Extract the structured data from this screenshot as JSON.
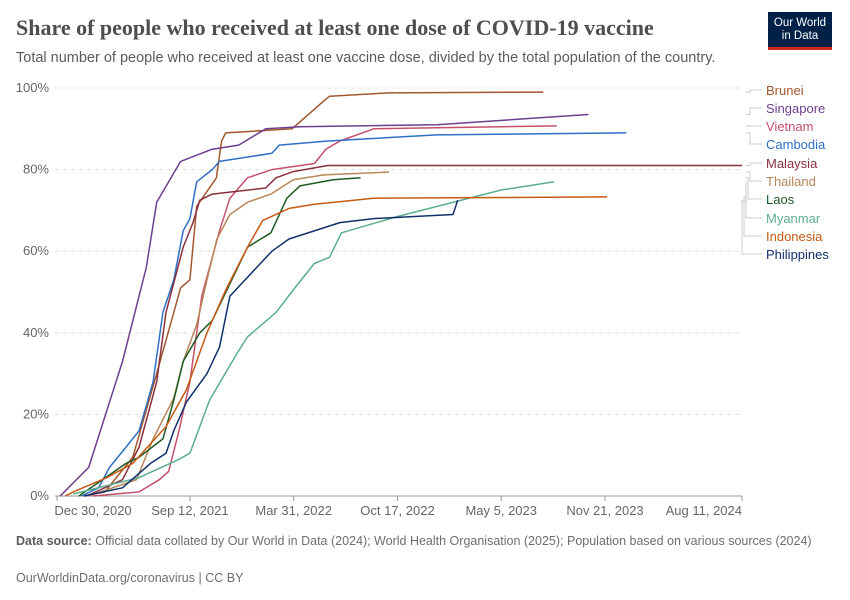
{
  "header": {
    "title": "Share of people who received at least one dose of COVID-19 vaccine",
    "subtitle": "Total number of people who received at least one vaccine dose, divided by the total population of the country.",
    "logo": "Our World in Data"
  },
  "footer": {
    "source_label": "Data source:",
    "source_text": "Official data collated by Our World in Data (2024); World Health Organisation (2025); Population based on various sources (2024)",
    "link": "OurWorldinData.org/coronavirus | CC BY"
  },
  "chart_data": {
    "type": "line",
    "title": "Share of people who received at least one dose of COVID-19 vaccine",
    "xlabel": "",
    "ylabel": "",
    "xlim": [
      "2020-12-26",
      "2024-08-11"
    ],
    "ylim": [
      0,
      100
    ],
    "grid": true,
    "legend": "right (labels at line ends)",
    "y_ticks": [
      "0%",
      "20%",
      "40%",
      "60%",
      "80%",
      "100%"
    ],
    "x_ticks": [
      {
        "date": "2020-12-30",
        "label": "Dec 30, 2020"
      },
      {
        "date": "2021-09-12",
        "label": "Sep 12, 2021"
      },
      {
        "date": "2022-03-31",
        "label": "Mar 31, 2022"
      },
      {
        "date": "2022-10-17",
        "label": "Oct 17, 2022"
      },
      {
        "date": "2023-05-05",
        "label": "May 5, 2023"
      },
      {
        "date": "2023-11-21",
        "label": "Nov 21, 2023"
      },
      {
        "date": "2024-08-11",
        "label": "Aug 11, 2024"
      }
    ],
    "series": [
      {
        "name": "Brunei",
        "color": "#a0582d",
        "points": [
          [
            "2021-02-20",
            0
          ],
          [
            "2021-04-01",
            1
          ],
          [
            "2021-05-25",
            9.5
          ],
          [
            "2021-07-10",
            30
          ],
          [
            "2021-08-25",
            51
          ],
          [
            "2021-09-12",
            53
          ],
          [
            "2021-09-25",
            71
          ],
          [
            "2021-11-02",
            78
          ],
          [
            "2021-11-12",
            87
          ],
          [
            "2021-11-20",
            89
          ],
          [
            "2022-03-28",
            90
          ],
          [
            "2022-05-25",
            96.5
          ],
          [
            "2022-06-08",
            98
          ],
          [
            "2022-10-01",
            98.8
          ],
          [
            "2023-07-25",
            99
          ]
        ]
      },
      {
        "name": "Singapore",
        "color": "#6d3e91",
        "points": [
          [
            "2021-01-05",
            0
          ],
          [
            "2021-03-01",
            7
          ],
          [
            "2021-05-05",
            33
          ],
          [
            "2021-06-20",
            56
          ],
          [
            "2021-07-10",
            72
          ],
          [
            "2021-08-25",
            82
          ],
          [
            "2021-10-25",
            85
          ],
          [
            "2021-12-15",
            86
          ],
          [
            "2022-02-05",
            90
          ],
          [
            "2022-04-12",
            90.5
          ],
          [
            "2023-01-01",
            91
          ],
          [
            "2023-10-20",
            93.5
          ]
        ]
      },
      {
        "name": "Vietnam",
        "color": "#c6506a",
        "points": [
          [
            "2021-03-10",
            0
          ],
          [
            "2021-06-06",
            1
          ],
          [
            "2021-07-15",
            4
          ],
          [
            "2021-08-02",
            6
          ],
          [
            "2021-08-22",
            16
          ],
          [
            "2021-09-12",
            28
          ],
          [
            "2021-10-05",
            49
          ],
          [
            "2021-11-08",
            65
          ],
          [
            "2021-11-28",
            73
          ],
          [
            "2022-01-01",
            78
          ],
          [
            "2022-02-17",
            80
          ],
          [
            "2022-05-10",
            81.5
          ],
          [
            "2022-06-01",
            85
          ],
          [
            "2022-06-28",
            87
          ],
          [
            "2022-09-01",
            90
          ],
          [
            "2023-08-20",
            90.7
          ]
        ]
      },
      {
        "name": "Cambodia",
        "color": "#2f6fc4",
        "points": [
          [
            "2021-02-15",
            0
          ],
          [
            "2021-03-20",
            2
          ],
          [
            "2021-04-10",
            7
          ],
          [
            "2021-05-12",
            12
          ],
          [
            "2021-06-06",
            16
          ],
          [
            "2021-07-03",
            28
          ],
          [
            "2021-07-22",
            45
          ],
          [
            "2021-08-12",
            53
          ],
          [
            "2021-08-30",
            65
          ],
          [
            "2021-09-12",
            68
          ],
          [
            "2021-09-25",
            77
          ],
          [
            "2021-10-25",
            80
          ],
          [
            "2021-11-08",
            82
          ],
          [
            "2022-02-17",
            84
          ],
          [
            "2022-03-03",
            86
          ],
          [
            "2022-06-05",
            87
          ],
          [
            "2023-01-01",
            88.5
          ],
          [
            "2024-01-01",
            89
          ]
        ]
      },
      {
        "name": "Malaysia",
        "color": "#8a2f3c",
        "points": [
          [
            "2021-02-25",
            0
          ],
          [
            "2021-05-05",
            4
          ],
          [
            "2021-06-06",
            12
          ],
          [
            "2021-07-10",
            28
          ],
          [
            "2021-07-28",
            45
          ],
          [
            "2021-08-30",
            61
          ],
          [
            "2021-09-18",
            67
          ],
          [
            "2021-10-01",
            72.5
          ],
          [
            "2021-10-25",
            74
          ],
          [
            "2022-02-05",
            75.5
          ],
          [
            "2022-02-25",
            78
          ],
          [
            "2022-03-30",
            79.5
          ],
          [
            "2022-06-05",
            81
          ],
          [
            "2024-08-11",
            81
          ]
        ]
      },
      {
        "name": "Thailand",
        "color": "#b8875a",
        "points": [
          [
            "2021-03-01",
            0
          ],
          [
            "2021-06-01",
            4
          ],
          [
            "2021-07-03",
            14
          ],
          [
            "2021-08-12",
            24
          ],
          [
            "2021-08-30",
            33
          ],
          [
            "2021-09-25",
            42
          ],
          [
            "2021-10-15",
            53
          ],
          [
            "2021-11-03",
            63
          ],
          [
            "2021-11-28",
            69
          ],
          [
            "2022-01-01",
            72
          ],
          [
            "2022-02-15",
            74
          ],
          [
            "2022-03-30",
            77.5
          ],
          [
            "2022-05-28",
            78.7
          ],
          [
            "2022-10-01",
            79.4
          ]
        ]
      },
      {
        "name": "Laos",
        "color": "#1d5a23",
        "points": [
          [
            "2021-02-10",
            0
          ],
          [
            "2021-05-12",
            8
          ],
          [
            "2021-06-06",
            9.5
          ],
          [
            "2021-07-22",
            14
          ],
          [
            "2021-08-12",
            23.5
          ],
          [
            "2021-08-30",
            33
          ],
          [
            "2021-10-01",
            40
          ],
          [
            "2021-10-25",
            43
          ],
          [
            "2022-01-01",
            61
          ],
          [
            "2022-02-15",
            64.5
          ],
          [
            "2022-03-18",
            73
          ],
          [
            "2022-04-12",
            76
          ],
          [
            "2022-06-15",
            77.5
          ],
          [
            "2022-08-07",
            78
          ]
        ]
      },
      {
        "name": "Myanmar",
        "color": "#5bae8e",
        "points": [
          [
            "2021-01-30",
            0.5
          ],
          [
            "2021-06-06",
            4.5
          ],
          [
            "2021-08-22",
            9
          ],
          [
            "2021-09-12",
            10.5
          ],
          [
            "2021-10-20",
            23.5
          ],
          [
            "2021-12-12",
            35
          ],
          [
            "2022-01-01",
            39
          ],
          [
            "2022-02-25",
            45
          ],
          [
            "2022-03-30",
            50.5
          ],
          [
            "2022-05-10",
            57
          ],
          [
            "2022-06-08",
            58.5
          ],
          [
            "2022-07-01",
            64.5
          ],
          [
            "2022-10-17",
            68.5
          ],
          [
            "2023-05-05",
            75
          ],
          [
            "2023-08-15",
            77
          ]
        ]
      },
      {
        "name": "Indonesia",
        "color": "#c85a14",
        "points": [
          [
            "2021-01-15",
            0
          ],
          [
            "2021-01-30",
            1
          ],
          [
            "2021-04-05",
            4.5
          ],
          [
            "2021-05-25",
            8
          ],
          [
            "2021-07-28",
            17
          ],
          [
            "2021-09-05",
            26
          ],
          [
            "2021-10-15",
            40
          ],
          [
            "2021-11-20",
            50.5
          ],
          [
            "2022-01-01",
            61
          ],
          [
            "2022-01-30",
            67.5
          ],
          [
            "2022-03-22",
            70.5
          ],
          [
            "2022-05-10",
            71.5
          ],
          [
            "2022-09-01",
            73
          ],
          [
            "2023-11-25",
            73.3
          ]
        ]
      },
      {
        "name": "Philippines",
        "color": "#12306b",
        "points": [
          [
            "2021-02-20",
            0
          ],
          [
            "2021-05-05",
            2
          ],
          [
            "2021-06-28",
            8
          ],
          [
            "2021-07-28",
            10.5
          ],
          [
            "2021-08-12",
            16
          ],
          [
            "2021-09-05",
            23
          ],
          [
            "2021-10-15",
            30
          ],
          [
            "2021-11-08",
            36.5
          ],
          [
            "2021-11-28",
            49
          ],
          [
            "2022-02-17",
            60
          ],
          [
            "2022-03-22",
            63
          ],
          [
            "2022-06-28",
            67
          ],
          [
            "2022-09-01",
            68
          ],
          [
            "2023-02-01",
            69
          ],
          [
            "2023-02-10",
            72.5
          ]
        ]
      }
    ]
  }
}
